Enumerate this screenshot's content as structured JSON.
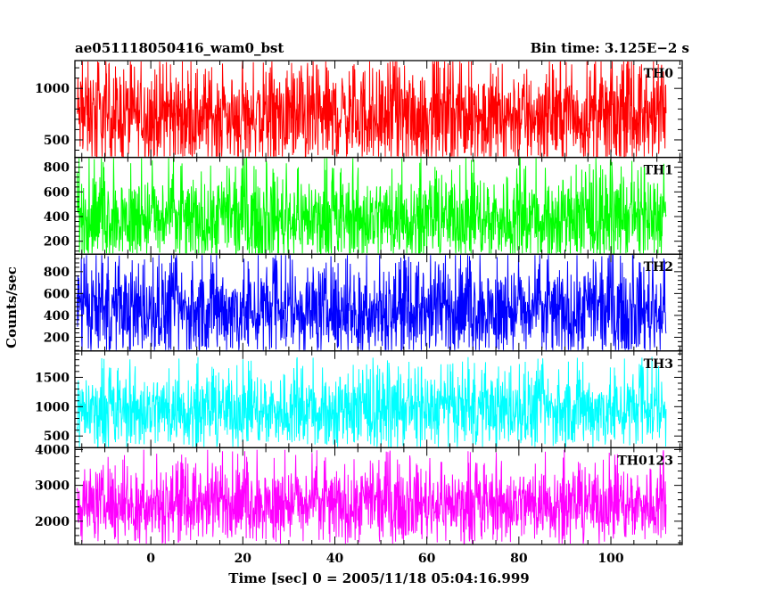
{
  "header": {
    "source_label": "ae051118050416_wam0_bst",
    "bin_time_label": "Bin time: 3.125E−2 s"
  },
  "axes": {
    "ylabel": "Counts/sec",
    "xlabel": "Time [sec] 0 = 2005/11/18 05:04:16.999"
  },
  "chart_data": {
    "type": "line",
    "title": "ae051118050416_wam0_bst",
    "subtitle": "Bin time: 3.125E−2 s",
    "xlabel": "Time [sec] 0 = 2005/11/18 05:04:16.999",
    "ylabel": "Counts/sec",
    "xlim": [
      -16.5,
      115.5
    ],
    "x_data_range": [
      -16,
      112
    ],
    "bin_time_s": 0.03125,
    "x_ticks": [
      0,
      20,
      40,
      60,
      80,
      100
    ],
    "x_tick_labels": [
      "0",
      "20",
      "40",
      "60",
      "80",
      "100"
    ],
    "grid": false,
    "panels": [
      {
        "name": "TH0",
        "color": "#ff0000",
        "ylim": [
          330,
          1270
        ],
        "ticks": [
          500,
          1000
        ],
        "tick_labels": [
          "500",
          "1000"
        ],
        "mean": 740,
        "typical_range": [
          420,
          1180
        ],
        "peak_range": [
          300,
          1300
        ]
      },
      {
        "name": "TH1",
        "color": "#00ff00",
        "ylim": [
          95,
          880
        ],
        "ticks": [
          200,
          400,
          600,
          800
        ],
        "tick_labels": [
          "200",
          "400",
          "600",
          "800"
        ],
        "mean": 390,
        "typical_range": [
          150,
          700
        ],
        "peak_range": [
          100,
          900
        ]
      },
      {
        "name": "TH2",
        "color": "#0000ff",
        "ylim": [
          75,
          960
        ],
        "ticks": [
          200,
          400,
          600,
          800
        ],
        "tick_labels": [
          "200",
          "400",
          "600",
          "800"
        ],
        "mean": 450,
        "typical_range": [
          150,
          800
        ],
        "peak_range": [
          80,
          1000
        ]
      },
      {
        "name": "TH3",
        "color": "#00ffff",
        "ylim": [
          300,
          1950
        ],
        "ticks": [
          500,
          1000,
          1500
        ],
        "tick_labels": [
          "500",
          "1000",
          "1500"
        ],
        "mean": 950,
        "typical_range": [
          500,
          1500
        ],
        "peak_range": [
          350,
          1850
        ]
      },
      {
        "name": "TH0123",
        "color": "#ff00ff",
        "ylim": [
          1350,
          4050
        ],
        "ticks": [
          2000,
          3000,
          4000
        ],
        "tick_labels": [
          "2000",
          "3000",
          "4000"
        ],
        "mean": 2500,
        "typical_range": [
          1700,
          3300
        ],
        "peak_range": [
          1400,
          4000
        ]
      }
    ]
  }
}
